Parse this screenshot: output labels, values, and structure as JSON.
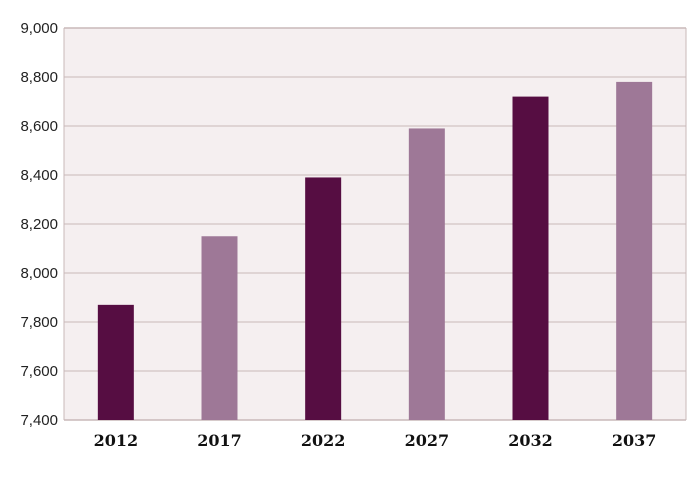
{
  "chart_data": {
    "type": "bar",
    "categories": [
      "2012",
      "2017",
      "2022",
      "2027",
      "2032",
      "2037"
    ],
    "values": [
      7870,
      8150,
      8390,
      8590,
      8720,
      8780
    ],
    "bar_colors": [
      "#560d42",
      "#9e7897",
      "#560d42",
      "#9e7897",
      "#560d42",
      "#9e7897"
    ],
    "ylim": [
      7400,
      9000
    ],
    "yticks": [
      7400,
      7600,
      7800,
      8000,
      8200,
      8400,
      8600,
      8800,
      9000
    ],
    "ytick_labels": [
      "7,400",
      "7,600",
      "7,800",
      "8,000",
      "8,200",
      "8,400",
      "8,600",
      "8,800",
      "9,000"
    ],
    "grid": true,
    "plot_background": "#f5eff0",
    "grid_color": "#c9b9b9",
    "title": "",
    "xlabel": "",
    "ylabel": ""
  }
}
